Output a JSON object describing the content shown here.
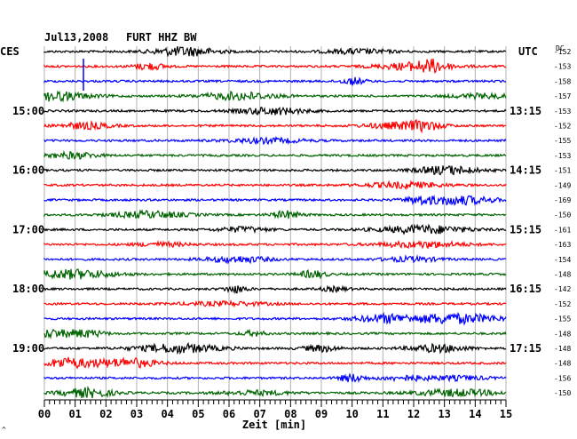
{
  "header": {
    "date": "Jul13,2008",
    "station": "FURT HHZ BW",
    "left_timezone": "CES",
    "right_timezone": "UTC",
    "dc_label": "DC"
  },
  "xaxis": {
    "label": "Zeit [min]",
    "ticks": [
      "00",
      "01",
      "02",
      "03",
      "04",
      "05",
      "06",
      "07",
      "08",
      "09",
      "10",
      "11",
      "12",
      "13",
      "14",
      "15"
    ],
    "range": [
      0,
      15
    ]
  },
  "left_hour_labels": [
    "15:00",
    "16:00",
    "17:00",
    "18:00",
    "19:00"
  ],
  "right_hour_labels": [
    "13:15",
    "14:15",
    "15:15",
    "16:15",
    "17:15"
  ],
  "corner_mark": "^",
  "colors": {
    "black": "#000000",
    "red": "#ff0000",
    "blue": "#0000ff",
    "green": "#006400",
    "grid": "#b0b0b0"
  },
  "chart_data": {
    "type": "line",
    "title": "Jul13,2008   FURT HHZ BW",
    "xlabel": "Zeit [min]",
    "xlim": [
      0,
      15
    ],
    "trace_color_cycle": [
      "black",
      "red",
      "blue",
      "green"
    ],
    "dc_offsets": [
      -152,
      -153,
      -158,
      -157,
      -153,
      -152,
      -155,
      -153,
      -151,
      -149,
      -169,
      -150,
      -161,
      -163,
      -154,
      -148,
      -142,
      -152,
      -155,
      -148,
      -148,
      -148,
      -156,
      -150
    ]
  }
}
